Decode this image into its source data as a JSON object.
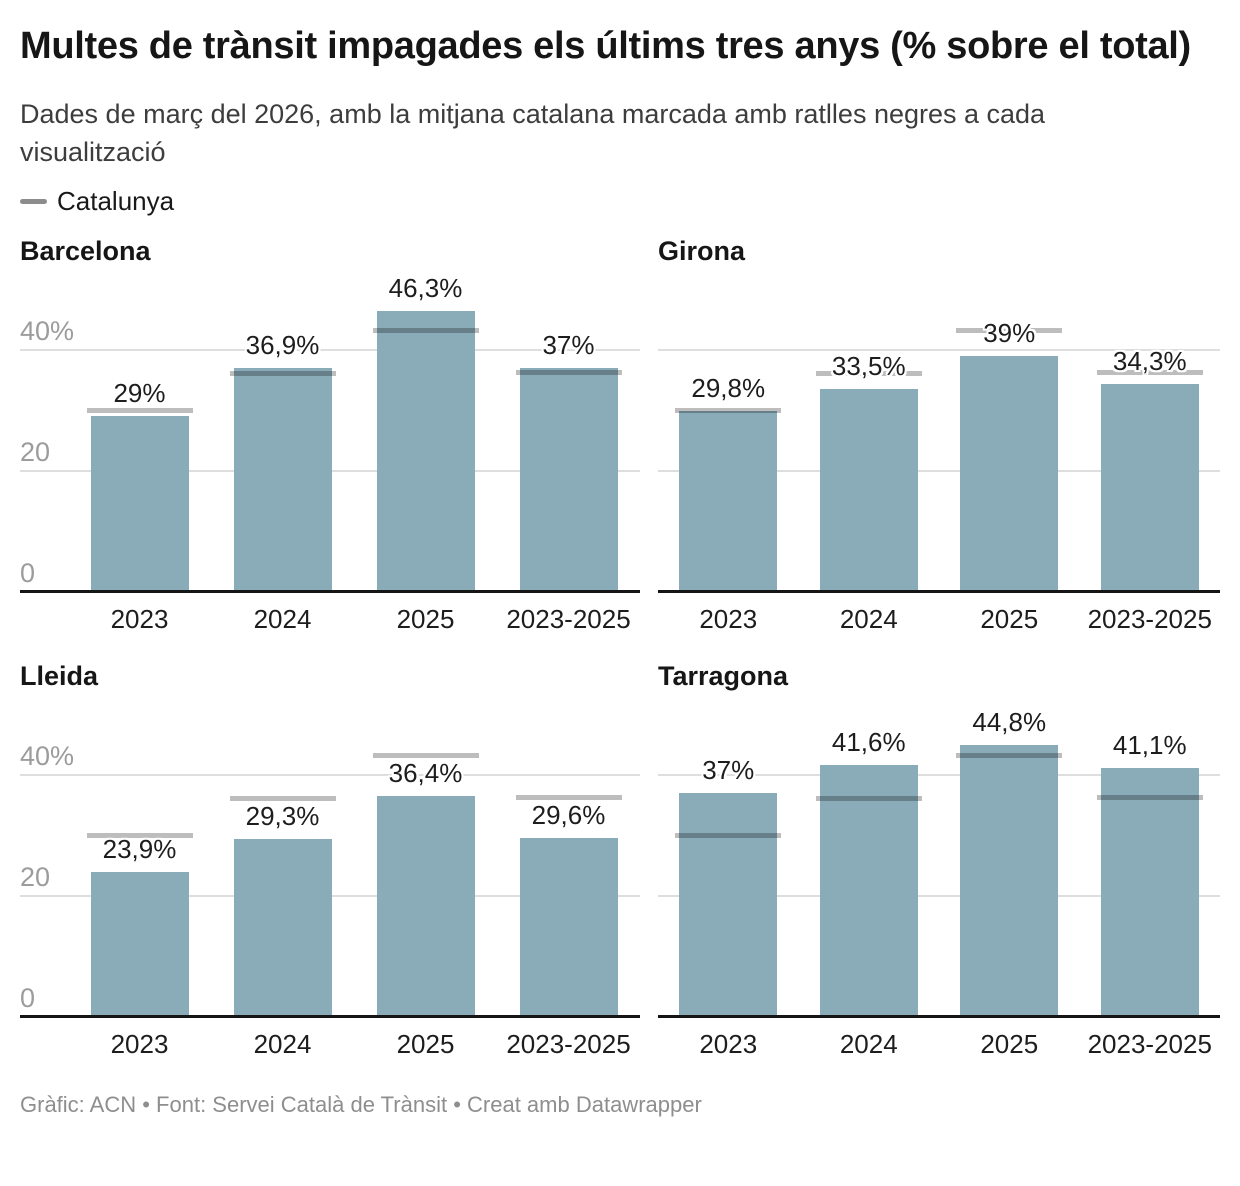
{
  "title": "Multes de trànsit impagades els últims tres anys (% sobre el total)",
  "subtitle": "Dades de març del 2026, amb la mitjana catalana marcada amb ratlles negres a cada visualització",
  "legend": {
    "label": "Catalunya"
  },
  "footer": "Gràfic: ACN • Font: Servei Català de Trànsit • Creat amb Datawrapper",
  "chart_data": {
    "type": "bar",
    "small_multiples": true,
    "categories": [
      "2023",
      "2024",
      "2025",
      "2023-2025"
    ],
    "panels": [
      {
        "title": "Barcelona",
        "values": [
          29,
          36.9,
          46.3,
          37
        ],
        "labels": [
          "29%",
          "36,9%",
          "46,3%",
          "37%"
        ]
      },
      {
        "title": "Girona",
        "values": [
          29.8,
          33.5,
          39,
          34.3
        ],
        "labels": [
          "29,8%",
          "33,5%",
          "39%",
          "34,3%"
        ]
      },
      {
        "title": "Lleida",
        "values": [
          23.9,
          29.3,
          36.4,
          29.6
        ],
        "labels": [
          "23,9%",
          "29,3%",
          "36,4%",
          "29,6%"
        ]
      },
      {
        "title": "Tarragona",
        "values": [
          37,
          41.6,
          44.8,
          41.1
        ],
        "labels": [
          "37%",
          "41,6%",
          "44,8%",
          "41,1%"
        ]
      }
    ],
    "reference_line": {
      "name": "Catalunya",
      "values_by_category": [
        29.9,
        36.1,
        43.1,
        36.3
      ],
      "note": "estimated from line positions"
    },
    "ylim": [
      0,
      49
    ],
    "gridlines": [
      20,
      40
    ],
    "y_axis_ticks": [
      {
        "value": 40,
        "label": "40%"
      },
      {
        "value": 20,
        "label": "20"
      },
      {
        "value": 0,
        "label": "0"
      }
    ],
    "legend_position": "top-left",
    "value_labels_shown": true
  },
  "colors": {
    "bar": "#8aacb8",
    "reference_line_on_white": "#c2c2c2",
    "reference_line_on_bar": "#5e7078",
    "gridline": "#dedede",
    "baseline": "#151515",
    "title_text": "#161616",
    "subtitle_text": "#3d3d3d",
    "axis_tick_gray": "#9c9c9c",
    "label_dark": "#1d1d1d",
    "footer_text": "#8e8e8e",
    "legend_dash": "#8c8c8c"
  }
}
